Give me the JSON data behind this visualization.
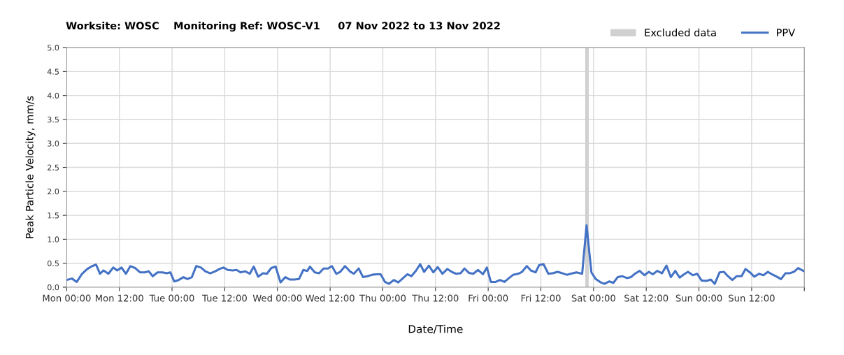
{
  "chart_data": {
    "type": "line",
    "title": "Worksite: WOSC    Monitoring Ref: WOSC-V1     07 Nov 2022 to 13 Nov 2022",
    "xlabel": "Date/Time",
    "ylabel": "Peak Particle Velocity, mm/s",
    "series": [
      {
        "name": "PPV",
        "color": "#4472c4",
        "x": [
          "2022-11-07T00:00",
          "2022-11-07T01:12",
          "2022-11-07T02:18",
          "2022-11-07T03:30",
          "2022-11-07T04:42",
          "2022-11-07T05:48",
          "2022-11-07T06:42",
          "2022-11-07T07:36",
          "2022-11-07T08:24",
          "2022-11-07T09:30",
          "2022-11-07T10:36",
          "2022-11-07T11:30",
          "2022-11-07T12:30",
          "2022-11-07T13:30",
          "2022-11-07T14:30",
          "2022-11-07T15:36",
          "2022-11-07T16:42",
          "2022-11-07T17:48",
          "2022-11-07T18:42",
          "2022-11-07T19:36",
          "2022-11-07T20:42",
          "2022-11-07T21:48",
          "2022-11-07T22:48",
          "2022-11-07T23:36",
          "2022-11-08T00:30",
          "2022-11-08T01:30",
          "2022-11-08T02:36",
          "2022-11-08T03:30",
          "2022-11-08T04:30",
          "2022-11-08T05:30",
          "2022-11-08T06:36",
          "2022-11-08T07:36",
          "2022-11-08T08:42",
          "2022-11-08T09:48",
          "2022-11-08T10:48",
          "2022-11-08T11:42",
          "2022-11-08T12:42",
          "2022-11-08T13:48",
          "2022-11-08T14:42",
          "2022-11-08T15:36",
          "2022-11-08T16:42",
          "2022-11-08T17:42",
          "2022-11-08T18:36",
          "2022-11-08T19:36",
          "2022-11-08T20:42",
          "2022-11-08T21:36",
          "2022-11-08T22:36",
          "2022-11-08T23:36",
          "2022-11-09T00:42",
          "2022-11-09T01:48",
          "2022-11-09T02:48",
          "2022-11-09T03:54",
          "2022-11-09T04:54",
          "2022-11-09T05:54",
          "2022-11-09T06:48",
          "2022-11-09T07:24",
          "2022-11-09T08:30",
          "2022-11-09T09:30",
          "2022-11-09T10:30",
          "2022-11-09T11:30",
          "2022-11-09T12:24",
          "2022-11-09T13:24",
          "2022-11-09T14:18",
          "2022-11-09T15:24",
          "2022-11-09T16:30",
          "2022-11-09T17:24",
          "2022-11-09T18:30",
          "2022-11-09T19:30",
          "2022-11-09T20:30",
          "2022-11-09T21:36",
          "2022-11-09T22:30",
          "2022-11-09T23:30",
          "2022-11-10T00:30",
          "2022-11-10T01:24",
          "2022-11-10T02:30",
          "2022-11-10T03:30",
          "2022-11-10T04:30",
          "2022-11-10T05:36",
          "2022-11-10T06:30",
          "2022-11-10T07:36",
          "2022-11-10T08:30",
          "2022-11-10T09:24",
          "2022-11-10T10:30",
          "2022-11-10T11:30",
          "2022-11-10T12:30",
          "2022-11-10T13:36",
          "2022-11-10T14:42",
          "2022-11-10T15:42",
          "2022-11-10T16:42",
          "2022-11-10T17:42",
          "2022-11-10T18:36",
          "2022-11-10T19:36",
          "2022-11-10T20:36",
          "2022-11-10T21:42",
          "2022-11-10T22:48",
          "2022-11-10T23:42",
          "2022-11-11T00:36",
          "2022-11-11T01:42",
          "2022-11-11T02:42",
          "2022-11-11T03:42",
          "2022-11-11T04:36",
          "2022-11-11T05:42",
          "2022-11-11T06:48",
          "2022-11-11T07:42",
          "2022-11-11T08:48",
          "2022-11-11T09:42",
          "2022-11-11T10:48",
          "2022-11-11T11:36",
          "2022-11-11T12:36",
          "2022-11-11T13:42",
          "2022-11-11T14:42",
          "2022-11-11T15:48",
          "2022-11-11T16:54",
          "2022-11-11T17:54",
          "2022-11-11T18:48",
          "2022-11-11T20:06",
          "2022-11-11T21:24",
          "2022-11-11T22:24",
          "2022-11-11T23:30",
          "2022-11-12T00:30",
          "2022-11-12T01:36",
          "2022-11-12T02:30",
          "2022-11-12T03:36",
          "2022-11-12T04:30",
          "2022-11-12T05:30",
          "2022-11-12T06:30",
          "2022-11-12T07:36",
          "2022-11-12T08:30",
          "2022-11-12T09:24",
          "2022-11-12T10:30",
          "2022-11-12T11:36",
          "2022-11-12T12:36",
          "2022-11-12T13:30",
          "2022-11-12T14:30",
          "2022-11-12T15:36",
          "2022-11-12T16:36",
          "2022-11-12T17:36",
          "2022-11-12T18:36",
          "2022-11-12T19:36",
          "2022-11-12T20:36",
          "2022-11-12T21:30",
          "2022-11-12T22:36",
          "2022-11-12T23:36",
          "2022-11-13T00:36",
          "2022-11-13T01:42",
          "2022-11-13T02:42",
          "2022-11-13T03:36",
          "2022-11-13T04:42",
          "2022-11-13T05:42",
          "2022-11-13T06:36",
          "2022-11-13T07:36",
          "2022-11-13T08:36",
          "2022-11-13T09:42",
          "2022-11-13T10:36",
          "2022-11-13T11:36",
          "2022-11-13T12:36",
          "2022-11-13T13:42",
          "2022-11-13T14:42",
          "2022-11-13T15:42",
          "2022-11-13T16:36",
          "2022-11-13T17:42",
          "2022-11-13T18:42",
          "2022-11-13T19:42",
          "2022-11-13T20:36",
          "2022-11-13T21:36",
          "2022-11-13T22:36",
          "2022-11-13T23:48"
        ],
        "values": [
          0.15,
          0.18,
          0.11,
          0.28,
          0.38,
          0.44,
          0.47,
          0.28,
          0.35,
          0.28,
          0.41,
          0.35,
          0.41,
          0.28,
          0.44,
          0.4,
          0.31,
          0.31,
          0.33,
          0.23,
          0.31,
          0.31,
          0.29,
          0.31,
          0.12,
          0.15,
          0.21,
          0.17,
          0.21,
          0.44,
          0.41,
          0.33,
          0.29,
          0.33,
          0.38,
          0.41,
          0.36,
          0.35,
          0.36,
          0.31,
          0.33,
          0.28,
          0.43,
          0.22,
          0.29,
          0.28,
          0.4,
          0.43,
          0.1,
          0.21,
          0.16,
          0.16,
          0.17,
          0.36,
          0.34,
          0.43,
          0.31,
          0.29,
          0.39,
          0.39,
          0.44,
          0.28,
          0.32,
          0.44,
          0.33,
          0.28,
          0.39,
          0.21,
          0.23,
          0.26,
          0.27,
          0.27,
          0.11,
          0.07,
          0.15,
          0.1,
          0.18,
          0.27,
          0.23,
          0.35,
          0.48,
          0.32,
          0.45,
          0.31,
          0.42,
          0.28,
          0.38,
          0.32,
          0.28,
          0.29,
          0.39,
          0.3,
          0.28,
          0.36,
          0.27,
          0.41,
          0.11,
          0.11,
          0.15,
          0.11,
          0.18,
          0.26,
          0.28,
          0.32,
          0.44,
          0.35,
          0.31,
          0.46,
          0.48,
          0.28,
          0.29,
          0.32,
          0.29,
          0.26,
          0.28,
          0.31,
          0.28,
          1.29,
          0.31,
          0.17,
          0.1,
          0.07,
          0.12,
          0.09,
          0.21,
          0.23,
          0.19,
          0.21,
          0.28,
          0.34,
          0.25,
          0.32,
          0.27,
          0.34,
          0.29,
          0.45,
          0.21,
          0.34,
          0.2,
          0.27,
          0.32,
          0.25,
          0.28,
          0.14,
          0.13,
          0.16,
          0.07,
          0.31,
          0.32,
          0.23,
          0.15,
          0.23,
          0.23,
          0.38,
          0.31,
          0.22,
          0.28,
          0.25,
          0.32,
          0.27,
          0.22,
          0.17,
          0.29,
          0.29,
          0.32,
          0.4,
          0.34
        ]
      }
    ],
    "bands": [
      {
        "axis": "x",
        "from": "2022-11-11T22:06",
        "to": "2022-11-11T22:54",
        "label": "Excluded data",
        "color": "#d0d0d0"
      }
    ],
    "xlim": [
      "2022-11-07T00:00",
      "2022-11-14T00:00"
    ],
    "xticks": [
      {
        "value": "2022-11-07T00:00",
        "label": "Mon 00:00"
      },
      {
        "value": "2022-11-07T12:00",
        "label": "Mon 12:00"
      },
      {
        "value": "2022-11-08T00:00",
        "label": "Tue 00:00"
      },
      {
        "value": "2022-11-08T12:00",
        "label": "Tue 12:00"
      },
      {
        "value": "2022-11-09T00:00",
        "label": "Wed 00:00"
      },
      {
        "value": "2022-11-09T12:00",
        "label": "Wed 12:00"
      },
      {
        "value": "2022-11-10T00:00",
        "label": "Thu 00:00"
      },
      {
        "value": "2022-11-10T12:00",
        "label": "Thu 12:00"
      },
      {
        "value": "2022-11-11T00:00",
        "label": "Fri 00:00"
      },
      {
        "value": "2022-11-11T12:00",
        "label": "Fri 12:00"
      },
      {
        "value": "2022-11-12T00:00",
        "label": "Sat 00:00"
      },
      {
        "value": "2022-11-12T12:00",
        "label": "Sat 12:00"
      },
      {
        "value": "2022-11-13T00:00",
        "label": "Sun 00:00"
      },
      {
        "value": "2022-11-13T12:00",
        "label": "Sun 12:00"
      },
      {
        "value": "2022-11-14T00:00",
        "label": null
      }
    ],
    "ylim": [
      0,
      5
    ],
    "yticks": [
      {
        "value": 0,
        "label": "0.0"
      },
      {
        "value": 0.5,
        "label": "0.5"
      },
      {
        "value": 1,
        "label": "1.0"
      },
      {
        "value": 1.5,
        "label": "1.5"
      },
      {
        "value": 2,
        "label": "2.0"
      },
      {
        "value": 2.5,
        "label": "2.5"
      },
      {
        "value": 3,
        "label": "3.0"
      },
      {
        "value": 3.5,
        "label": "3.5"
      },
      {
        "value": 4,
        "label": "4.0"
      },
      {
        "value": 4.5,
        "label": "4.5"
      },
      {
        "value": 5,
        "label": "5.0"
      }
    ],
    "grid": true,
    "legend": "top right",
    "marker": "none",
    "line_style": "solid"
  }
}
